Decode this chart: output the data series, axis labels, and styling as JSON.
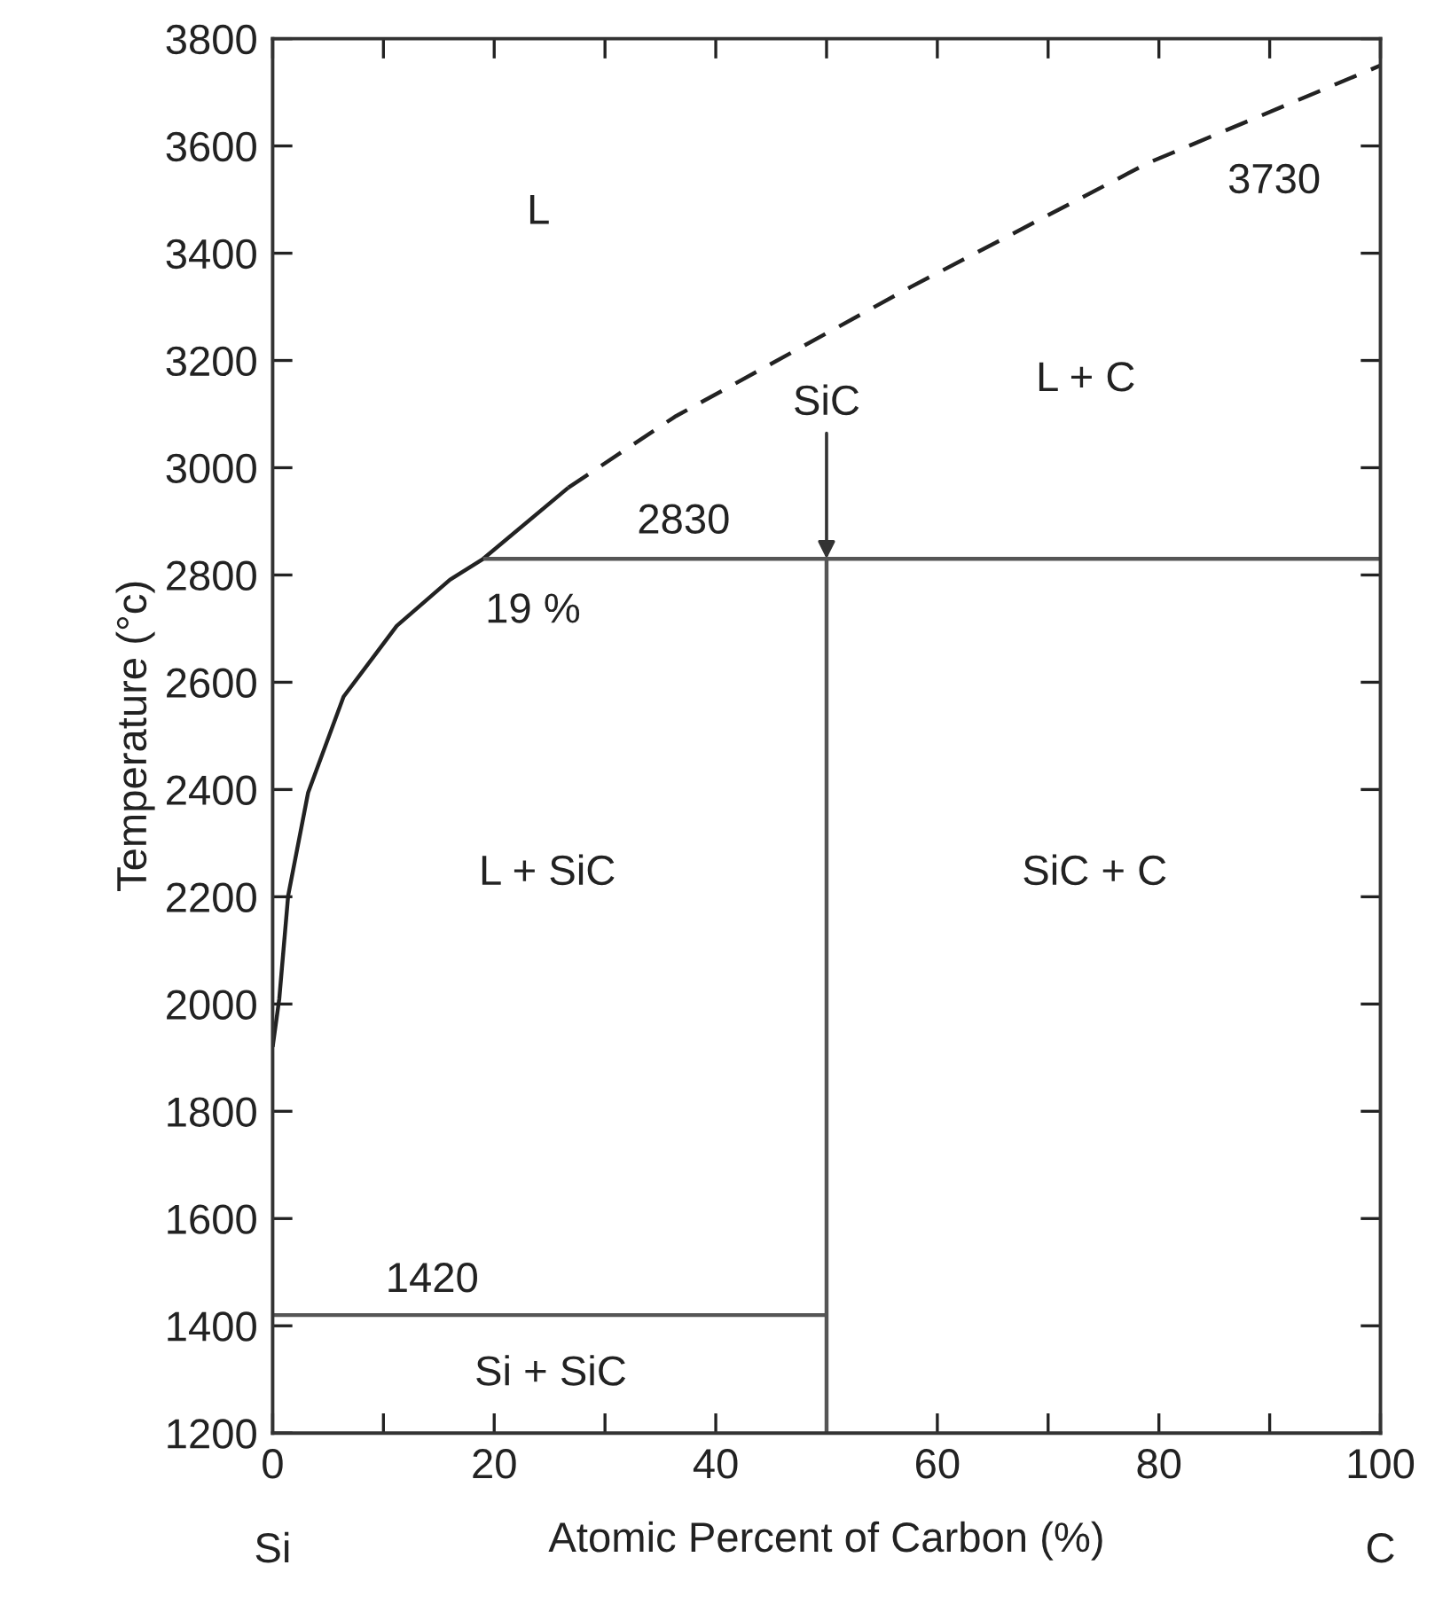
{
  "chart_data": {
    "type": "line",
    "xlabel": "Atomic Percent of Carbon (%)",
    "ylabel": "Temperature (°c)",
    "xlim": [
      0,
      100
    ],
    "ylim": [
      1200,
      3800
    ],
    "xticks": [
      0,
      {
        "value": 10,
        "label": null
      },
      20,
      {
        "value": 30,
        "label": null
      },
      40,
      {
        "value": 50,
        "label": null
      },
      60,
      {
        "value": 70,
        "label": null
      },
      80,
      {
        "value": 90,
        "label": null
      },
      100
    ],
    "yticks": [
      1200,
      1400,
      1600,
      1800,
      2000,
      2200,
      2400,
      2600,
      2800,
      3000,
      3200,
      3400,
      3600,
      3800
    ],
    "grid": false,
    "legend": false,
    "marker": "none",
    "series": [
      {
        "color": "#222222",
        "line_style": "solid",
        "x": [
          0,
          0.6,
          1.4,
          3.2,
          6.4,
          11.2,
          16,
          19,
          26.7
        ],
        "values": [
          1920,
          2010,
          2202,
          2394,
          2573,
          2705,
          2791,
          2830,
          2963
        ]
      },
      {
        "color": "#222222",
        "line_style": "dashed",
        "x": [
          26.7,
          36.3,
          57.6,
          79,
          100
        ],
        "values": [
          2963,
          3095,
          3337,
          3568,
          3750
        ]
      },
      {
        "color": "#555555",
        "line_style": "solid",
        "x": [
          19,
          100
        ],
        "values": [
          2830,
          2830
        ]
      },
      {
        "color": "#555555",
        "line_style": "solid",
        "x": [
          50,
          50
        ],
        "values": [
          1200,
          2830
        ]
      },
      {
        "color": "#555555",
        "line_style": "solid",
        "x": [
          0,
          50
        ],
        "values": [
          1420,
          1420
        ]
      }
    ],
    "annotations": [
      "L",
      "3730",
      "L + C",
      {
        "text": "SiC",
        "x": 50,
        "y": 2830
      },
      "2830",
      "19 %",
      "L + SiC",
      "SiC + C",
      "1420",
      "Si + SiC",
      "Si",
      "C"
    ]
  }
}
